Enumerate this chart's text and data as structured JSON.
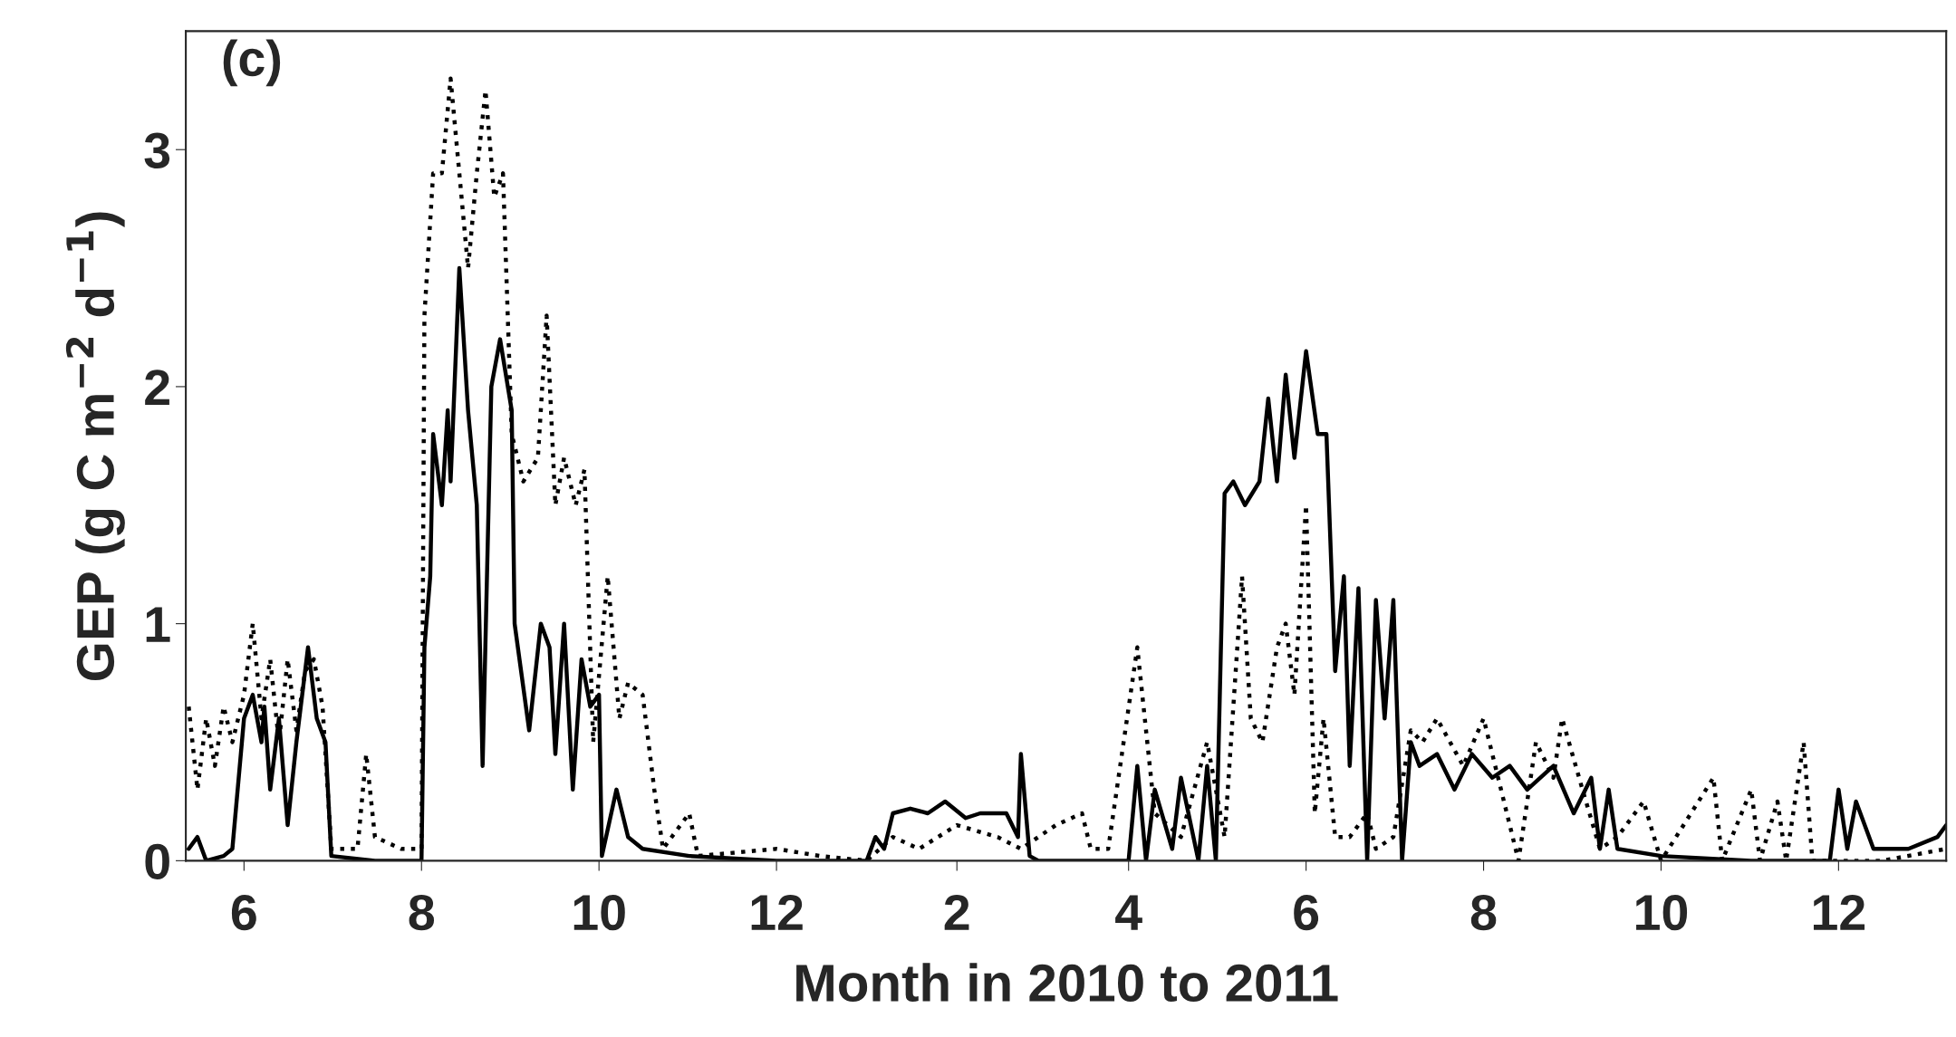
{
  "chart_data": {
    "type": "line",
    "xlabel": "Month in 2010 to 2011",
    "ylabel": "GEP (g C m$^{−2}$ d$^{−1}$)",
    "annotations": [
      "(c)"
    ],
    "xlim": [
      "2010-05-12",
      "2012-01-07"
    ],
    "ylim": [
      0,
      3.5
    ],
    "xticks": [
      {
        "value": "2010-06",
        "label": "6"
      },
      {
        "value": "2010-08",
        "label": "8"
      },
      {
        "value": "2010-10",
        "label": "10"
      },
      {
        "value": "2010-12",
        "label": "12"
      },
      {
        "value": "2011-02",
        "label": "2"
      },
      {
        "value": "2011-04",
        "label": "4"
      },
      {
        "value": "2011-06",
        "label": "6"
      },
      {
        "value": "2011-08",
        "label": "8"
      },
      {
        "value": "2011-10",
        "label": "10"
      },
      {
        "value": "2011-12",
        "label": "12"
      }
    ],
    "yticks": [
      0,
      1,
      2,
      3
    ],
    "grid": false,
    "legend": false,
    "marker": "none",
    "series": [
      {
        "color": "#000000",
        "line_style": "dotted",
        "x": [
          "2010-05-13",
          "2010-05-16",
          "2010-05-19",
          "2010-05-22",
          "2010-05-25",
          "2010-05-28",
          "2010-06-01",
          "2010-06-04",
          "2010-06-07",
          "2010-06-10",
          "2010-06-13",
          "2010-06-16",
          "2010-06-19",
          "2010-06-22",
          "2010-06-25",
          "2010-06-28",
          "2010-07-01",
          "2010-07-10",
          "2010-07-13",
          "2010-07-16",
          "2010-07-25",
          "2010-08-01",
          "2010-08-02",
          "2010-08-05",
          "2010-08-08",
          "2010-08-11",
          "2010-08-14",
          "2010-08-17",
          "2010-08-20",
          "2010-08-23",
          "2010-08-26",
          "2010-08-29",
          "2010-09-01",
          "2010-09-05",
          "2010-09-10",
          "2010-09-13",
          "2010-09-16",
          "2010-09-19",
          "2010-09-23",
          "2010-09-26",
          "2010-09-29",
          "2010-10-04",
          "2010-10-08",
          "2010-10-11",
          "2010-10-16",
          "2010-10-20",
          "2010-10-23",
          "2010-11-01",
          "2010-11-04",
          "2010-12-01",
          "2010-12-16",
          "2011-01-01",
          "2011-01-10",
          "2011-01-19",
          "2011-02-01",
          "2011-02-15",
          "2011-02-23",
          "2011-03-01",
          "2011-03-07",
          "2011-03-16",
          "2011-03-19",
          "2011-03-25",
          "2011-04-04",
          "2011-04-10",
          "2011-04-19",
          "2011-04-28",
          "2011-05-04",
          "2011-05-10",
          "2011-05-13",
          "2011-05-17",
          "2011-05-22",
          "2011-05-25",
          "2011-05-28",
          "2011-06-01",
          "2011-06-04",
          "2011-06-07",
          "2011-06-11",
          "2011-06-16",
          "2011-06-22",
          "2011-06-25",
          "2011-07-01",
          "2011-07-07",
          "2011-07-11",
          "2011-07-16",
          "2011-07-25",
          "2011-08-01",
          "2011-08-07",
          "2011-08-13",
          "2011-08-19",
          "2011-08-25",
          "2011-08-28",
          "2011-09-04",
          "2011-09-10",
          "2011-09-16",
          "2011-09-25",
          "2011-10-01",
          "2011-10-19",
          "2011-10-22",
          "2011-11-01",
          "2011-11-04",
          "2011-11-10",
          "2011-11-13",
          "2011-11-19",
          "2011-11-22",
          "2011-12-16",
          "2012-01-07"
        ],
        "values": [
          0.65,
          0.3,
          0.6,
          0.4,
          0.65,
          0.5,
          0.7,
          1.0,
          0.6,
          0.85,
          0.5,
          0.85,
          0.55,
          0.8,
          0.85,
          0.65,
          0.05,
          0.05,
          0.45,
          0.1,
          0.05,
          0.05,
          2.3,
          2.9,
          2.9,
          3.3,
          2.9,
          2.5,
          2.9,
          3.25,
          2.8,
          2.9,
          1.8,
          1.6,
          1.7,
          2.3,
          1.5,
          1.7,
          1.5,
          1.65,
          0.5,
          1.2,
          0.6,
          0.75,
          0.7,
          0.3,
          0.05,
          0.2,
          0.02,
          0.05,
          0.02,
          0.0,
          0.1,
          0.05,
          0.15,
          0.1,
          0.05,
          0.1,
          0.15,
          0.2,
          0.05,
          0.05,
          0.9,
          0.2,
          0.1,
          0.5,
          0.1,
          1.2,
          0.6,
          0.5,
          0.9,
          1.0,
          0.7,
          1.5,
          0.2,
          0.6,
          0.1,
          0.1,
          0.2,
          0.05,
          0.1,
          0.55,
          0.5,
          0.6,
          0.4,
          0.6,
          0.3,
          0.0,
          0.5,
          0.35,
          0.6,
          0.3,
          0.05,
          0.1,
          0.25,
          0.0,
          0.35,
          0.0,
          0.3,
          0.0,
          0.25,
          0.0,
          0.5,
          0.0,
          0.0,
          0.05
        ]
      },
      {
        "color": "#000000",
        "line_style": "solid",
        "x": [
          "2010-05-13",
          "2010-05-16",
          "2010-05-19",
          "2010-05-25",
          "2010-05-28",
          "2010-06-01",
          "2010-06-04",
          "2010-06-07",
          "2010-06-08",
          "2010-06-10",
          "2010-06-13",
          "2010-06-16",
          "2010-06-19",
          "2010-06-22",
          "2010-06-23",
          "2010-06-26",
          "2010-06-29",
          "2010-07-01",
          "2010-07-16",
          "2010-08-01",
          "2010-08-02",
          "2010-08-04",
          "2010-08-05",
          "2010-08-08",
          "2010-08-10",
          "2010-08-11",
          "2010-08-14",
          "2010-08-17",
          "2010-08-20",
          "2010-08-22",
          "2010-08-25",
          "2010-08-28",
          "2010-09-01",
          "2010-09-02",
          "2010-09-07",
          "2010-09-11",
          "2010-09-14",
          "2010-09-16",
          "2010-09-19",
          "2010-09-22",
          "2010-09-25",
          "2010-09-28",
          "2010-10-01",
          "2010-10-02",
          "2010-10-07",
          "2010-10-11",
          "2010-10-16",
          "2010-11-01",
          "2010-12-01",
          "2011-01-01",
          "2011-01-04",
          "2011-01-07",
          "2011-01-10",
          "2011-01-16",
          "2011-01-22",
          "2011-01-28",
          "2011-02-04",
          "2011-02-09",
          "2011-02-18",
          "2011-02-22",
          "2011-02-23",
          "2011-02-26",
          "2011-03-01",
          "2011-04-01",
          "2011-04-04",
          "2011-04-07",
          "2011-04-10",
          "2011-04-16",
          "2011-04-19",
          "2011-04-25",
          "2011-04-28",
          "2011-05-01",
          "2011-05-04",
          "2011-05-07",
          "2011-05-11",
          "2011-05-16",
          "2011-05-19",
          "2011-05-22",
          "2011-05-25",
          "2011-05-28",
          "2011-06-01",
          "2011-06-05",
          "2011-06-08",
          "2011-06-11",
          "2011-06-14",
          "2011-06-16",
          "2011-06-19",
          "2011-06-22",
          "2011-06-25",
          "2011-06-28",
          "2011-07-01",
          "2011-07-04",
          "2011-07-07",
          "2011-07-10",
          "2011-07-16",
          "2011-07-22",
          "2011-07-28",
          "2011-08-04",
          "2011-08-10",
          "2011-08-16",
          "2011-08-25",
          "2011-09-01",
          "2011-09-07",
          "2011-09-10",
          "2011-09-13",
          "2011-09-16",
          "2011-10-01",
          "2011-11-01",
          "2011-11-28",
          "2011-12-01",
          "2011-12-04",
          "2011-12-07",
          "2011-12-13",
          "2011-12-25",
          "2012-01-04",
          "2012-01-07"
        ],
        "values": [
          0.05,
          0.1,
          0.0,
          0.02,
          0.05,
          0.6,
          0.7,
          0.5,
          0.65,
          0.3,
          0.6,
          0.15,
          0.5,
          0.8,
          0.9,
          0.6,
          0.5,
          0.02,
          0.0,
          0.0,
          0.9,
          1.2,
          1.8,
          1.5,
          1.9,
          1.6,
          2.5,
          1.9,
          1.5,
          0.4,
          2.0,
          2.2,
          1.9,
          1.0,
          0.55,
          1.0,
          0.9,
          0.45,
          1.0,
          0.3,
          0.85,
          0.65,
          0.7,
          0.02,
          0.3,
          0.1,
          0.05,
          0.02,
          0.0,
          0.0,
          0.1,
          0.05,
          0.2,
          0.22,
          0.2,
          0.25,
          0.18,
          0.2,
          0.2,
          0.1,
          0.45,
          0.02,
          0.0,
          0.0,
          0.4,
          0.0,
          0.3,
          0.05,
          0.35,
          0.0,
          0.4,
          0.0,
          1.55,
          1.6,
          1.5,
          1.6,
          1.95,
          1.6,
          2.05,
          1.7,
          2.15,
          1.8,
          1.8,
          0.8,
          1.2,
          0.4,
          1.15,
          0.0,
          1.1,
          0.6,
          1.1,
          0.0,
          0.5,
          0.4,
          0.45,
          0.3,
          0.45,
          0.35,
          0.4,
          0.3,
          0.4,
          0.2,
          0.35,
          0.05,
          0.3,
          0.05,
          0.02,
          0.0,
          0.0,
          0.3,
          0.05,
          0.25,
          0.05,
          0.05,
          0.1,
          0.15
        ]
      }
    ]
  }
}
